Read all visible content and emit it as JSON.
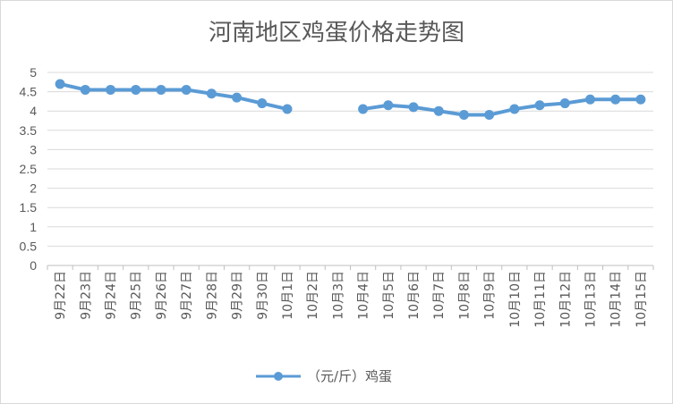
{
  "chart_data": {
    "type": "line",
    "title": "河南地区鸡蛋价格走势图",
    "categories": [
      "9月22日",
      "9月23日",
      "9月24日",
      "9月25日",
      "9月26日",
      "9月27日",
      "9月28日",
      "9月29日",
      "9月30日",
      "10月1日",
      "10月2日",
      "10月3日",
      "10月4日",
      "10月5日",
      "10月6日",
      "10月7日",
      "10月8日",
      "10月9日",
      "10月10日",
      "10月11日",
      "10月12日",
      "10月13日",
      "10月14日",
      "10月15日"
    ],
    "series": [
      {
        "name": "（元/斤）鸡蛋",
        "color": "#5b9bd5",
        "values": [
          4.7,
          4.55,
          4.55,
          4.55,
          4.55,
          4.55,
          4.45,
          4.35,
          4.2,
          4.05,
          null,
          null,
          4.05,
          4.15,
          4.1,
          4.0,
          3.9,
          3.9,
          4.05,
          4.15,
          4.2,
          4.3,
          4.3,
          4.3
        ]
      }
    ],
    "ylim": [
      0,
      5
    ],
    "yticks": [
      "0",
      "0.5",
      "1",
      "1.5",
      "2",
      "2.5",
      "3",
      "3.5",
      "4",
      "4.5",
      "5"
    ],
    "grid": true,
    "legend_position": "bottom"
  }
}
